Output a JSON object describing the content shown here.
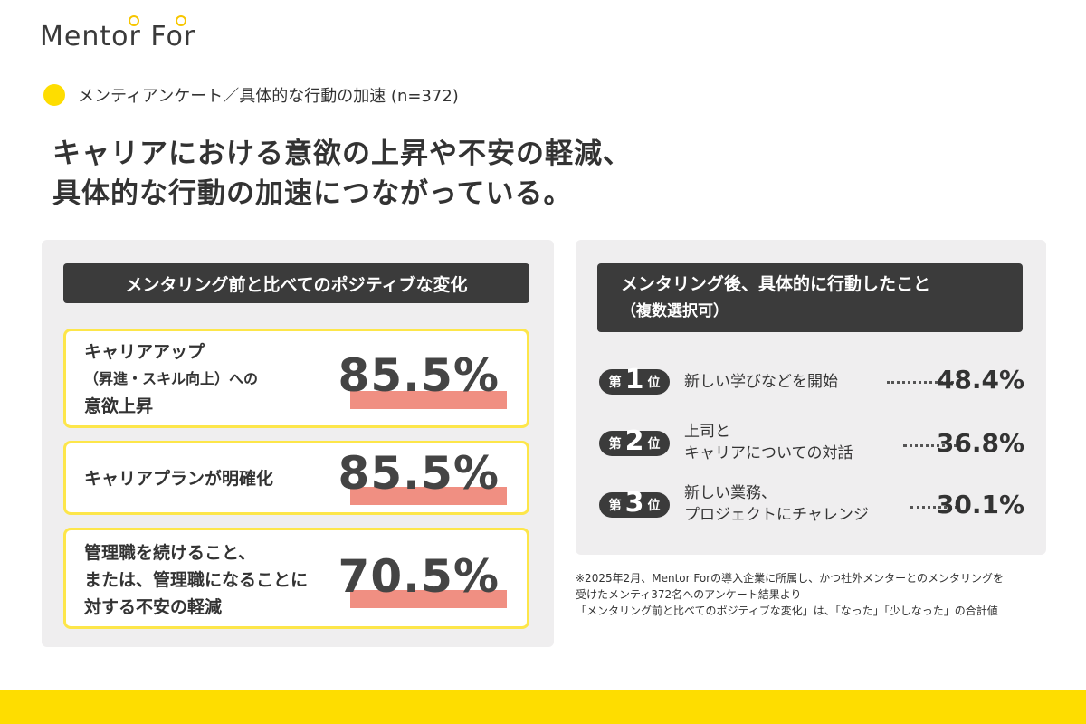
{
  "brand": {
    "logo_text": "Mentor For",
    "accent_color": "#fedd00",
    "bar_color": "#f08f82",
    "dark_color": "#3b3b3b"
  },
  "subhead": {
    "text": "メンティアンケート／具体的な行動の加速 (n=372)"
  },
  "headline": {
    "line1": "キャリアにおける意欲の上昇や不安の軽減、",
    "line2": "具体的な行動の加速につながっている。"
  },
  "left_panel": {
    "title": "メンタリング前と比べてのポジティブな変化",
    "items": [
      {
        "label_line1": "キャリアアップ",
        "label_line2": "（昇進・スキル向上）への",
        "label_line3": "意欲上昇",
        "value": "85.5%"
      },
      {
        "label_line1": "キャリアプランが明確化",
        "value": "85.5%"
      },
      {
        "label_line1": "管理職を続けること、",
        "label_line2": "または、管理職になることに",
        "label_line3": "対する不安の軽減",
        "value": "70.5%"
      }
    ]
  },
  "right_panel": {
    "title_line1": "メンタリング後、具体的に行動したこと",
    "title_line2": "（複数選択可）",
    "ranks": [
      {
        "prefix": "第",
        "number": "1",
        "suffix": "位",
        "label_line1": "新しい学びなどを開始",
        "value": "48.4%"
      },
      {
        "prefix": "第",
        "number": "2",
        "suffix": "位",
        "label_line1": "上司と",
        "label_line2": "キャリアについての対話",
        "value": "36.8%"
      },
      {
        "prefix": "第",
        "number": "3",
        "suffix": "位",
        "label_line1": "新しい業務、",
        "label_line2": "プロジェクトにチャレンジ",
        "value": "30.1%"
      }
    ]
  },
  "notes": {
    "line1": "※2025年2月、Mentor Forの導入企業に所属し、かつ社外メンターとのメンタリングを",
    "line2": "受けたメンティ372名へのアンケート結果より",
    "line3": "「メンタリング前と比べてのポジティブな変化」は、「なった」「少しなった」の合計値"
  }
}
